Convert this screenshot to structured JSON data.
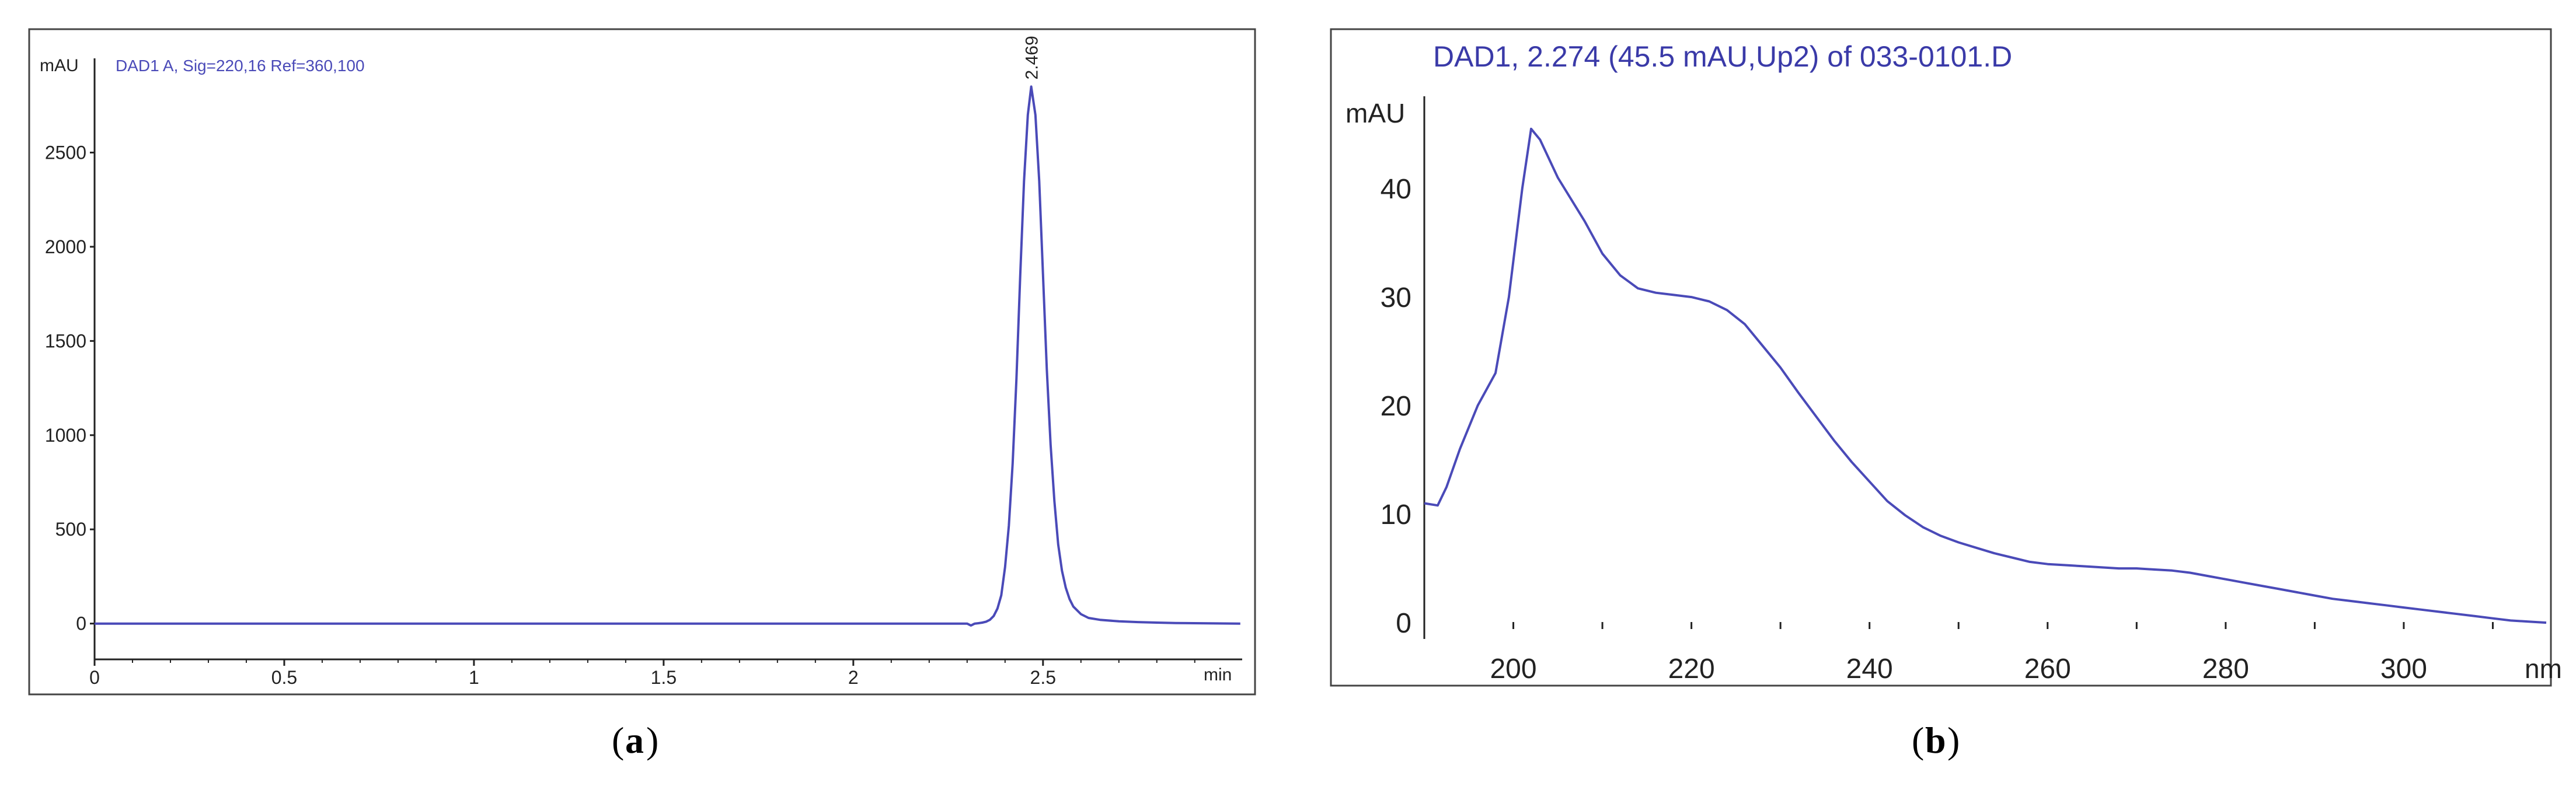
{
  "panels": {
    "a_label": "a",
    "b_label": "b"
  },
  "colors": {
    "trace": "#4a4ab8",
    "axis": "#222222",
    "title_a": "#4a4ab8",
    "title_b": "#3a3aa8",
    "frame": "#444444"
  },
  "chart_data": [
    {
      "type": "line",
      "title": "DAD1 A, Sig=220,16 Ref=360,100",
      "ylabel": "mAU",
      "xlabel": "min",
      "xlim": [
        0,
        3.025
      ],
      "ylim": [
        -190,
        3000
      ],
      "xticks": [
        0,
        0.5,
        1,
        1.5,
        2,
        2.5
      ],
      "xtick_labels": [
        "0",
        "0.5",
        "1",
        "1.5",
        "2",
        "2.5"
      ],
      "yticks": [
        0,
        500,
        1000,
        1500,
        2000,
        2500
      ],
      "ytick_labels": [
        "0",
        "500",
        "1000",
        "1500",
        "2000",
        "2500"
      ],
      "grid": false,
      "peak_label": {
        "x": 2.469,
        "y": 2850,
        "text": "2.469"
      },
      "series": [
        {
          "x": [
            0,
            2.3,
            2.31,
            2.32,
            2.33,
            2.34,
            2.35,
            2.36,
            2.37,
            2.38,
            2.39,
            2.4,
            2.41,
            2.42,
            2.43,
            2.44,
            2.45,
            2.46,
            2.469,
            2.48,
            2.49,
            2.5,
            2.51,
            2.52,
            2.53,
            2.54,
            2.55,
            2.56,
            2.57,
            2.58,
            2.6,
            2.62,
            2.65,
            2.7,
            2.75,
            2.8,
            2.85,
            3.02
          ],
          "y": [
            0,
            0,
            -10,
            0,
            2,
            5,
            10,
            20,
            40,
            80,
            150,
            300,
            520,
            850,
            1300,
            1850,
            2350,
            2700,
            2850,
            2700,
            2350,
            1850,
            1350,
            950,
            650,
            420,
            280,
            190,
            130,
            90,
            50,
            30,
            20,
            12,
            8,
            5,
            3,
            0
          ]
        }
      ]
    },
    {
      "type": "line",
      "title": "DAD1, 2.274 (45.5 mAU,Up2) of 033-0101.D",
      "ylabel": "mAU",
      "xlabel": "nm",
      "xlim": [
        190,
        316
      ],
      "ylim": [
        -1.5,
        48.5
      ],
      "xticks": [
        200,
        220,
        240,
        260,
        280,
        300
      ],
      "xtick_labels": [
        "200",
        "220",
        "240",
        "260",
        "280",
        "300"
      ],
      "yticks": [
        0,
        10,
        20,
        30,
        40
      ],
      "ytick_labels": [
        "0",
        "10",
        "20",
        "30",
        "40"
      ],
      "grid": false,
      "series": [
        {
          "x": [
            190,
            191.5,
            192.5,
            194,
            196,
            198,
            199.5,
            201,
            202,
            203,
            205,
            208,
            210,
            212,
            214,
            216,
            218,
            220,
            222,
            224,
            226,
            228,
            230,
            232,
            234,
            236,
            238,
            240,
            242,
            244,
            246,
            248,
            250,
            252,
            254,
            256,
            258,
            260,
            262,
            264,
            266,
            268,
            270,
            272,
            274,
            276,
            278,
            280,
            282,
            284,
            286,
            288,
            290,
            292,
            294,
            296,
            298,
            300,
            302,
            304,
            306,
            308,
            310,
            312,
            314,
            316
          ],
          "y": [
            11.0,
            10.8,
            12.5,
            16.0,
            20.0,
            23.0,
            30.0,
            40.0,
            45.5,
            44.5,
            41.0,
            37.0,
            34.0,
            32.0,
            30.8,
            30.4,
            30.2,
            30.0,
            29.6,
            28.8,
            27.5,
            25.5,
            23.5,
            21.2,
            19.0,
            16.8,
            14.8,
            13.0,
            11.2,
            9.9,
            8.8,
            8.0,
            7.4,
            6.9,
            6.4,
            6.0,
            5.6,
            5.4,
            5.3,
            5.2,
            5.1,
            5.0,
            5.0,
            4.9,
            4.8,
            4.6,
            4.3,
            4.0,
            3.7,
            3.4,
            3.1,
            2.8,
            2.5,
            2.2,
            2.0,
            1.8,
            1.6,
            1.4,
            1.2,
            1.0,
            0.8,
            0.6,
            0.4,
            0.2,
            0.1,
            0.0
          ]
        }
      ]
    }
  ]
}
